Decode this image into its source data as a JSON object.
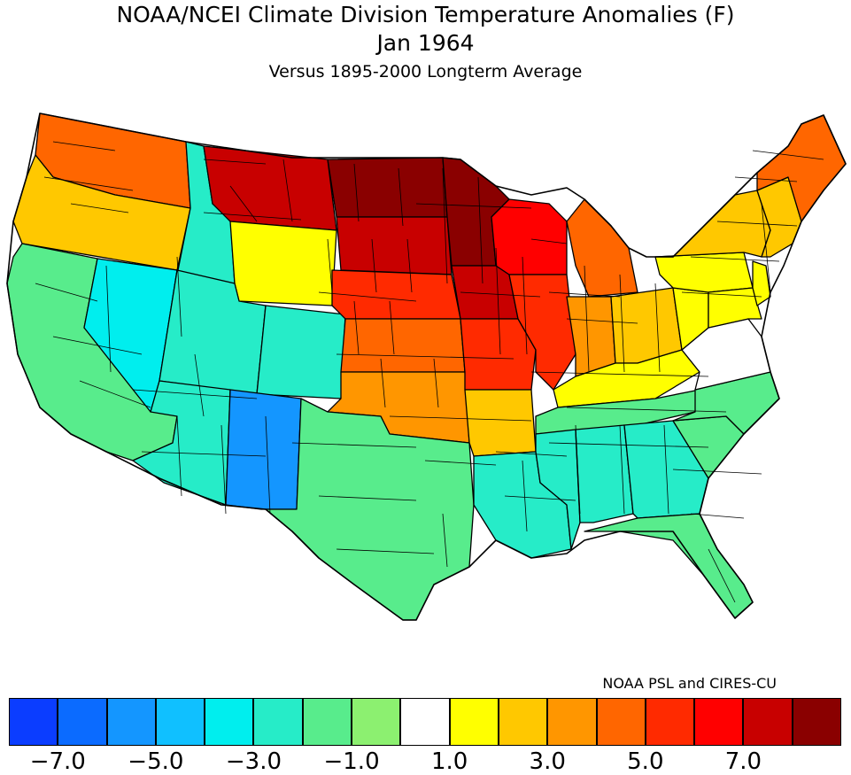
{
  "title_line1": "NOAA/NCEI Climate Division Temperature Anomalies (F)",
  "title_line2": "Jan 1964",
  "title_line3": "Versus 1895-2000 Longterm Average",
  "credit": "NOAA PSL and CIRES-CU",
  "legend": {
    "colors": [
      "#0b3dff",
      "#0b6bff",
      "#1496ff",
      "#10c0ff",
      "#00eeee",
      "#26ecc8",
      "#58ec8c",
      "#8cf070",
      "#ffffff",
      "#ffff00",
      "#ffc800",
      "#ff9600",
      "#ff6600",
      "#ff2a00",
      "#ff0000",
      "#c80000",
      "#8a0000"
    ],
    "tick_labels": [
      "-7.0",
      "-5.0",
      "-3.0",
      "-1.0",
      "1.0",
      "3.0",
      "5.0",
      "7.0"
    ]
  },
  "regions": [
    {
      "name": "Washington",
      "color": "#ff6600"
    },
    {
      "name": "Oregon",
      "color": "#ffc800"
    },
    {
      "name": "California",
      "color": "#58ec8c"
    },
    {
      "name": "Nevada",
      "color": "#00eeee"
    },
    {
      "name": "Idaho",
      "color": "#26ecc8"
    },
    {
      "name": "Montana",
      "color": "#c80000"
    },
    {
      "name": "Wyoming",
      "color": "#ffff00"
    },
    {
      "name": "Utah",
      "color": "#26ecc8"
    },
    {
      "name": "Colorado",
      "color": "#26ecc8"
    },
    {
      "name": "Arizona",
      "color": "#26ecc8"
    },
    {
      "name": "New Mexico",
      "color": "#1496ff"
    },
    {
      "name": "North Dakota",
      "color": "#8a0000"
    },
    {
      "name": "South Dakota",
      "color": "#c80000"
    },
    {
      "name": "Nebraska",
      "color": "#ff2a00"
    },
    {
      "name": "Kansas",
      "color": "#ff6600"
    },
    {
      "name": "Oklahoma",
      "color": "#ff9600"
    },
    {
      "name": "Texas",
      "color": "#58ec8c"
    },
    {
      "name": "Minnesota",
      "color": "#8a0000"
    },
    {
      "name": "Iowa",
      "color": "#c80000"
    },
    {
      "name": "Missouri",
      "color": "#ff2a00"
    },
    {
      "name": "Arkansas",
      "color": "#ffc800"
    },
    {
      "name": "Louisiana",
      "color": "#26ecc8"
    },
    {
      "name": "Wisconsin",
      "color": "#ff0000"
    },
    {
      "name": "Illinois",
      "color": "#ff2a00"
    },
    {
      "name": "Michigan",
      "color": "#ff6600"
    },
    {
      "name": "Indiana",
      "color": "#ff9600"
    },
    {
      "name": "Ohio",
      "color": "#ffc800"
    },
    {
      "name": "Kentucky",
      "color": "#ffff00"
    },
    {
      "name": "Tennessee",
      "color": "#58ec8c"
    },
    {
      "name": "Mississippi",
      "color": "#26ecc8"
    },
    {
      "name": "Alabama",
      "color": "#26ecc8"
    },
    {
      "name": "Georgia",
      "color": "#26ecc8"
    },
    {
      "name": "Florida",
      "color": "#58ec8c"
    },
    {
      "name": "South Carolina",
      "color": "#58ec8c"
    },
    {
      "name": "North Carolina",
      "color": "#58ec8c"
    },
    {
      "name": "Virginia",
      "color": "#ffffff"
    },
    {
      "name": "West Virginia",
      "color": "#ffff00"
    },
    {
      "name": "Pennsylvania",
      "color": "#ffff00"
    },
    {
      "name": "New York",
      "color": "#ffc800"
    },
    {
      "name": "Maryland / Delaware",
      "color": "#ffff00"
    },
    {
      "name": "New Jersey",
      "color": "#ffff00"
    },
    {
      "name": "New England",
      "color": "#ffc800"
    },
    {
      "name": "Maine",
      "color": "#ff6600"
    }
  ]
}
